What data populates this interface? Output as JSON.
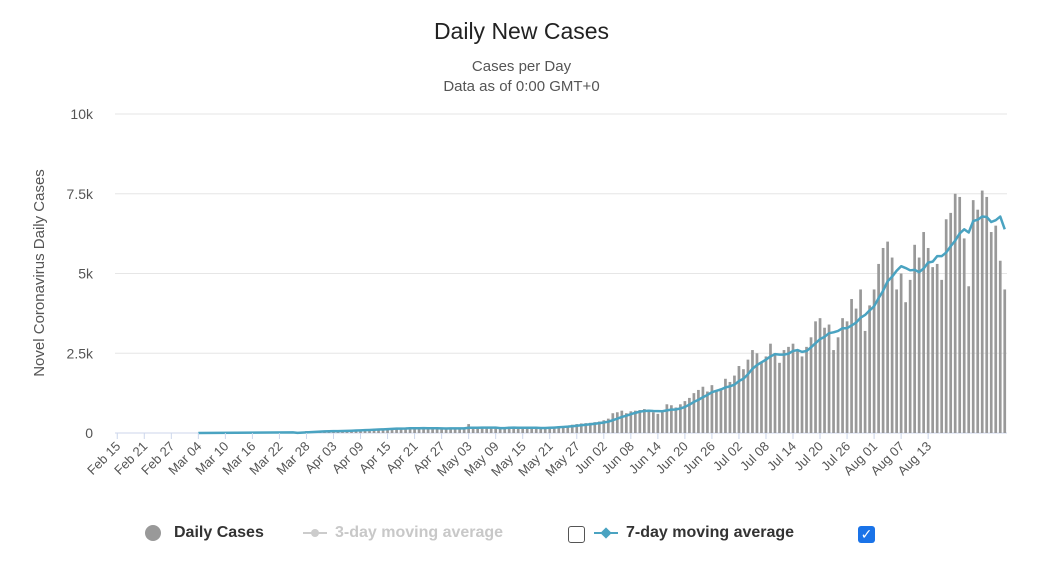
{
  "chart_data": {
    "type": "bar",
    "title": "Daily New Cases",
    "subtitle_1": "Cases per Day",
    "subtitle_2": "Data as of 0:00 GMT+0",
    "ylabel": "Novel Coronavirus Daily Cases",
    "xlabel": "",
    "ylim": [
      0,
      10000
    ],
    "yticks": [
      0,
      2500,
      5000,
      7500,
      10000
    ],
    "ytick_labels": [
      "0",
      "2.5k",
      "5k",
      "7.5k",
      "10k"
    ],
    "x_start": "Feb 15",
    "x_tick_labels": [
      "Feb 15",
      "Feb 21",
      "Feb 27",
      "Mar 04",
      "Mar 10",
      "Mar 16",
      "Mar 22",
      "Mar 28",
      "Apr 03",
      "Apr 09",
      "Apr 15",
      "Apr 21",
      "Apr 27",
      "May 03",
      "May 09",
      "May 15",
      "May 21",
      "May 27",
      "Jun 02",
      "Jun 08",
      "Jun 14",
      "Jun 20",
      "Jun 26",
      "Jul 02",
      "Jul 08",
      "Jul 14",
      "Jul 20",
      "Jul 26",
      "Aug 01",
      "Aug 07",
      "Aug 13"
    ],
    "series": [
      {
        "name": "Daily Cases",
        "type": "bar",
        "color": "#999999",
        "values": [
          0,
          0,
          0,
          0,
          0,
          0,
          0,
          0,
          0,
          0,
          0,
          0,
          0,
          0,
          0,
          0,
          0,
          0,
          0,
          0,
          0,
          0,
          0,
          0,
          0,
          0,
          0,
          0,
          0,
          0,
          0,
          0,
          0,
          0,
          0,
          0,
          0,
          0,
          0,
          0,
          30,
          40,
          60,
          50,
          55,
          60,
          55,
          60,
          65,
          70,
          75,
          80,
          90,
          95,
          100,
          110,
          110,
          130,
          120,
          140,
          150,
          140,
          160,
          130,
          150,
          170,
          150,
          140,
          160,
          130,
          150,
          140,
          150,
          130,
          145,
          160,
          150,
          140,
          280,
          160,
          130,
          150,
          170,
          160,
          140,
          150,
          180,
          200,
          170,
          160,
          150,
          140,
          150,
          170,
          160,
          180,
          190,
          200,
          210,
          220,
          230,
          260,
          280,
          300,
          310,
          320,
          340,
          360,
          400,
          450,
          620,
          650,
          700,
          620,
          680,
          700,
          720,
          750,
          700,
          650,
          600,
          650,
          900,
          870,
          800,
          900,
          1000,
          1100,
          1250,
          1350,
          1450,
          1300,
          1500,
          1300,
          1400,
          1700,
          1600,
          1800,
          2100,
          2000,
          2300,
          2600,
          2500,
          2200,
          2400,
          2800,
          2500,
          2200,
          2600,
          2700,
          2800,
          2600,
          2400,
          2700,
          3000,
          3500,
          3600,
          3300,
          3400,
          2600,
          3000,
          3600,
          3500,
          4200,
          3900,
          4500,
          3200,
          4000,
          4500,
          5300,
          5800,
          6000,
          5500,
          4500,
          5000,
          4100,
          4800,
          5900,
          5500,
          6300,
          5800,
          5200,
          5300,
          4800,
          6700,
          6900,
          7500,
          7400,
          6100,
          4600,
          7300,
          7000,
          7600,
          7400,
          6300,
          6500,
          5400,
          4500
        ]
      },
      {
        "name": "3-day moving average",
        "type": "line",
        "color": "#cccccc",
        "visible": false,
        "values": []
      },
      {
        "name": "7-day moving average",
        "type": "line",
        "color": "#4aa3c1",
        "visible": true,
        "values": []
      }
    ]
  },
  "legend": {
    "daily_label": "Daily Cases",
    "three_day_label": "3-day moving average",
    "seven_day_label": "7-day moving average",
    "three_day_checked": false,
    "seven_day_checked": true,
    "checkmark": "✓"
  }
}
